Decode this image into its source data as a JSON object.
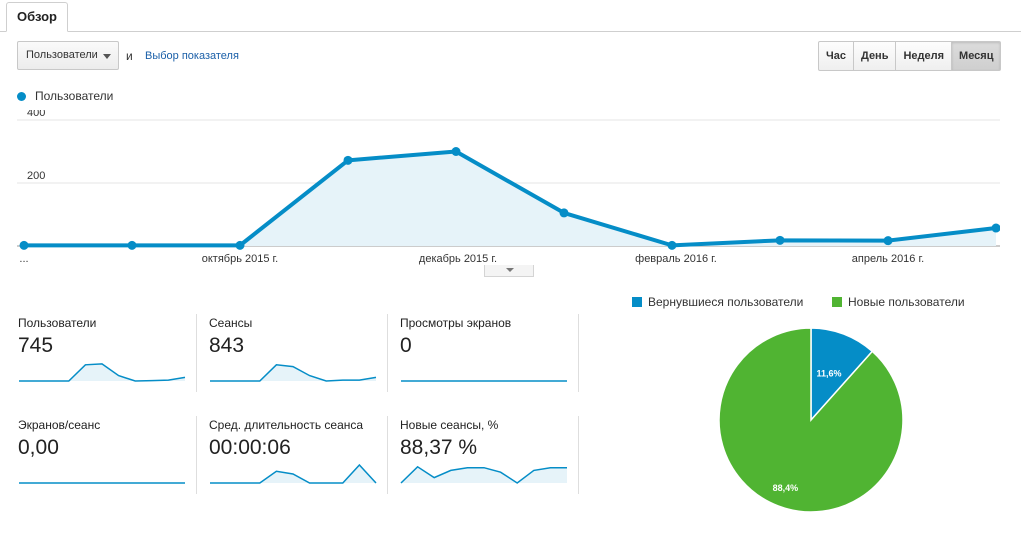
{
  "tabs": [
    {
      "label": "Обзор",
      "active": true
    }
  ],
  "toolbar": {
    "metric_select": "Пользователи",
    "and": "и",
    "choose_metric": "Выбор показателя",
    "periods": [
      {
        "label": "Час",
        "active": false
      },
      {
        "label": "День",
        "active": false
      },
      {
        "label": "Неделя",
        "active": false
      },
      {
        "label": "Месяц",
        "active": true
      }
    ]
  },
  "colors": {
    "series": "#058dc7",
    "area": "#e6f3f9",
    "new_users": "#50b432",
    "returning": "#058dc7"
  },
  "chart_data": [
    {
      "type": "area",
      "series": [
        {
          "name": "Пользователи",
          "values": [
            2,
            2,
            2,
            272,
            300,
            105,
            2,
            18,
            17,
            57
          ]
        }
      ],
      "yticks": [
        200,
        400
      ],
      "ylim": [
        0,
        400
      ],
      "xticks": [
        "...",
        "октябрь 2015 г.",
        "декабрь 2015 г.",
        "февраль 2016 г.",
        "апрель 2016 г."
      ],
      "grid": true,
      "legend": "top-left"
    },
    {
      "type": "pie",
      "slices": [
        {
          "name": "Вернувшиеся пользователи",
          "value": 11.6,
          "label": "11,6%"
        },
        {
          "name": "Новые пользователи",
          "value": 88.4,
          "label": "88,4%"
        }
      ],
      "legend": "top"
    }
  ],
  "metrics": [
    {
      "label": "Пользователи",
      "value": "745",
      "spark": [
        0,
        0,
        0,
        0,
        0.9,
        0.95,
        0.3,
        0,
        0.02,
        0.05,
        0.2
      ]
    },
    {
      "label": "Сеансы",
      "value": "843",
      "spark": [
        0,
        0,
        0,
        0,
        0.9,
        0.8,
        0.3,
        0,
        0.05,
        0.05,
        0.2
      ]
    },
    {
      "label": "Просмотры экранов",
      "value": "0",
      "spark": [
        0,
        0,
        0,
        0,
        0,
        0,
        0,
        0,
        0,
        0,
        0
      ]
    },
    {
      "label": "Экранов/сеанс",
      "value": "0,00",
      "spark": [
        0,
        0,
        0,
        0,
        0,
        0,
        0,
        0,
        0,
        0,
        0
      ]
    },
    {
      "label": "Сред. длительность сеанса",
      "value": "00:00:06",
      "spark": [
        0,
        0,
        0,
        0,
        0.65,
        0.5,
        0,
        0,
        0,
        1,
        0
      ]
    },
    {
      "label": "Новые сеансы, %",
      "value": "88,37 %",
      "spark": [
        0,
        0.9,
        0.3,
        0.7,
        0.85,
        0.85,
        0.6,
        0,
        0.7,
        0.85,
        0.85
      ]
    }
  ]
}
